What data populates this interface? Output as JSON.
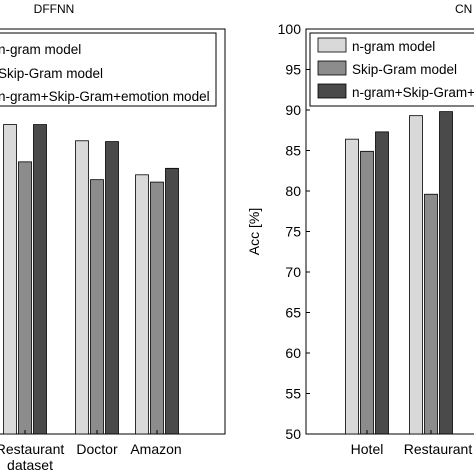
{
  "chart_data": [
    {
      "type": "bar",
      "title": "DFFNN",
      "xlabel": "dataset",
      "ylabel": "",
      "categories": [
        "Restaurant",
        "Doctor",
        "Amazon"
      ],
      "ylim": [
        50,
        100
      ],
      "legend_position": "top",
      "series": [
        {
          "name": "n-gram model",
          "values": [
            88.2,
            86.2,
            82.0
          ]
        },
        {
          "name": "Skip-Gram model",
          "values": [
            83.6,
            81.4,
            81.1
          ]
        },
        {
          "name": "n-gram+Skip-Gram+emotion model",
          "values": [
            88.2,
            86.1,
            82.8
          ]
        }
      ],
      "colors": [
        "#d9d9d9",
        "#8c8c8c",
        "#4a4a4a"
      ],
      "partial_label_first": "estaurant",
      "legend_visible": [
        "gram model",
        "Gram model",
        "m+Skip-Gram+emotion model"
      ],
      "y_visible": false
    },
    {
      "type": "bar",
      "title": "CN",
      "xlabel": "",
      "ylabel": "Acc [%]",
      "categories": [
        "Hotel",
        "Restaurant"
      ],
      "ylim": [
        50,
        100
      ],
      "yticks": [
        50,
        55,
        60,
        65,
        70,
        75,
        80,
        85,
        90,
        95,
        100
      ],
      "legend_position": "top-left",
      "series": [
        {
          "name": "n-gram model",
          "values": [
            86.4,
            89.3
          ]
        },
        {
          "name": "Skip-Gram model",
          "values": [
            84.9,
            79.6
          ]
        },
        {
          "name": "n-gram+Skip-Gram+emotion model",
          "values": [
            87.3,
            89.8
          ]
        }
      ],
      "colors": [
        "#d9d9d9",
        "#8c8c8c",
        "#4a4a4a"
      ],
      "legend_visible": [
        "n-gram model",
        "Skip-Gram mod",
        "n-gram+Skip-G"
      ],
      "partial_label_last": "Restaurant",
      "y_visible": true
    }
  ]
}
